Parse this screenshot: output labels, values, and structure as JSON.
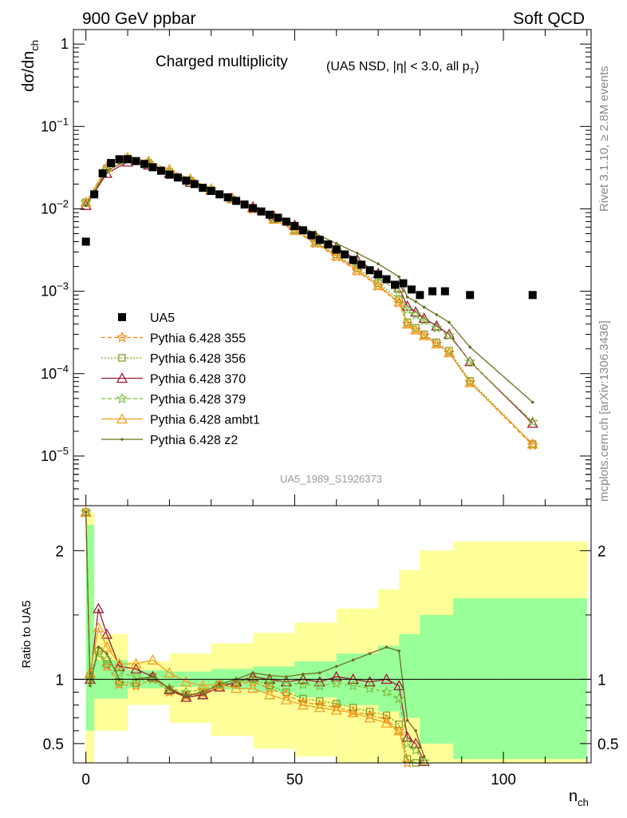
{
  "header": {
    "left": "900 GeV ppbar",
    "right": "Soft QCD"
  },
  "main_panel": {
    "title_main": "Charged multiplicity",
    "title_sub": "(UA5 NSD, |η| < 3.0, all p",
    "title_sub_subscript": "T",
    "title_sub_close": ")",
    "ylabel": "dσ/dn",
    "ylabel_subscript": "ch",
    "analysis_id": "UA5_1989_S1926373"
  },
  "ratio_panel": {
    "ylabel": "Ratio to UA5",
    "xlabel": "n",
    "xlabel_subscript": "ch"
  },
  "side_labels": {
    "rivet": "Rivet 3.1.10, ≥ 2.8M events",
    "mcplots": "mcplots.cern.ch [arXiv:1306.3436]"
  },
  "legend": [
    {
      "label": "UA5",
      "color": "#000000",
      "marker": "square",
      "dash": ""
    },
    {
      "label": "Pythia 6.428 355",
      "color": "#ff7f0e",
      "marker": "star",
      "dash": "5,3"
    },
    {
      "label": "Pythia 6.428 356",
      "color": "#7f9f1f",
      "marker": "square-open",
      "dash": "2,2"
    },
    {
      "label": "Pythia 6.428 370",
      "color": "#9b1b30",
      "marker": "triangle-open",
      "dash": ""
    },
    {
      "label": "Pythia 6.428 379",
      "color": "#7fbf3f",
      "marker": "star",
      "dash": "5,3"
    },
    {
      "label": "Pythia 6.428 ambt1",
      "color": "#f0a020",
      "marker": "triangle-open",
      "dash": ""
    },
    {
      "label": "Pythia 6.428 z2",
      "color": "#6b7020",
      "marker": "dot",
      "dash": ""
    }
  ],
  "colors": {
    "band_inner": "#99ff99",
    "band_outer": "#ffff99",
    "reference_line": "#000000"
  },
  "chart_data": [
    {
      "type": "scatter",
      "title": "Charged multiplicity",
      "xlabel": "n_ch",
      "ylabel": "dσ/dn_ch",
      "log_y": true,
      "xlim": [
        -3,
        121
      ],
      "ylim": [
        2.5e-06,
        1.5
      ],
      "x_ticks": [
        0,
        50,
        100
      ],
      "y_ticks": [
        {
          "value": 1,
          "label": "1"
        },
        {
          "value": 0.1,
          "label": "10^-1"
        },
        {
          "value": 0.01,
          "label": "10^-2"
        },
        {
          "value": 0.001,
          "label": "10^-3"
        },
        {
          "value": 0.0001,
          "label": "10^-4"
        },
        {
          "value": 1e-05,
          "label": "10^-5"
        }
      ],
      "reference": {
        "name": "UA5",
        "x": [
          0,
          2,
          4,
          6,
          8,
          10,
          12,
          14,
          16,
          18,
          20,
          22,
          24,
          26,
          28,
          30,
          32,
          34,
          36,
          38,
          40,
          42,
          44,
          46,
          48,
          50,
          52,
          54,
          56,
          58,
          60,
          62,
          64,
          66,
          68,
          70,
          72,
          74,
          76,
          78,
          80,
          83,
          86,
          92,
          107
        ],
        "y": [
          0.004,
          0.015,
          0.027,
          0.036,
          0.04,
          0.04,
          0.038,
          0.035,
          0.032,
          0.029,
          0.026,
          0.024,
          0.022,
          0.02,
          0.018,
          0.0165,
          0.015,
          0.0138,
          0.0125,
          0.0113,
          0.0102,
          0.0093,
          0.0085,
          0.0078,
          0.007,
          0.0062,
          0.0055,
          0.0048,
          0.0042,
          0.0037,
          0.0032,
          0.0028,
          0.0024,
          0.0021,
          0.0018,
          0.0016,
          0.0014,
          0.0012,
          0.00125,
          0.00105,
          0.0009,
          0.001,
          0.001,
          0.0009,
          0.0009
        ]
      },
      "series": [
        {
          "name": "Pythia 6.428 355",
          "x": [
            0,
            5,
            10,
            15,
            20,
            25,
            30,
            35,
            40,
            45,
            50,
            55,
            60,
            65,
            70,
            75,
            77,
            79,
            81,
            84,
            87,
            92,
            107
          ],
          "y": [
            0.012,
            0.03,
            0.041,
            0.036,
            0.028,
            0.022,
            0.017,
            0.013,
            0.0099,
            0.0074,
            0.0054,
            0.0038,
            0.0026,
            0.00175,
            0.00115,
            0.00072,
            0.0004,
            0.00034,
            0.00029,
            0.00023,
            0.00018,
            7.8e-05,
            1.35e-05
          ]
        },
        {
          "name": "Pythia 6.428 356",
          "x": [
            0,
            5,
            10,
            15,
            20,
            25,
            30,
            35,
            40,
            45,
            50,
            55,
            60,
            65,
            70,
            75,
            77,
            79,
            81,
            84,
            87,
            92,
            107
          ],
          "y": [
            0.012,
            0.031,
            0.041,
            0.036,
            0.028,
            0.022,
            0.017,
            0.013,
            0.01,
            0.0075,
            0.0056,
            0.004,
            0.0028,
            0.0019,
            0.00125,
            0.0008,
            0.00042,
            0.00036,
            0.0003,
            0.00024,
            0.00019,
            8.2e-05,
            1.4e-05
          ]
        },
        {
          "name": "Pythia 6.428 370",
          "x": [
            0,
            5,
            10,
            15,
            20,
            25,
            30,
            35,
            40,
            45,
            50,
            55,
            60,
            65,
            70,
            75,
            77,
            79,
            81,
            84,
            87,
            92,
            107
          ],
          "y": [
            0.011,
            0.027,
            0.037,
            0.034,
            0.027,
            0.021,
            0.017,
            0.0135,
            0.0106,
            0.0082,
            0.0063,
            0.0047,
            0.0034,
            0.0024,
            0.00165,
            0.0011,
            0.00066,
            0.00056,
            0.00047,
            0.00038,
            0.0003,
            0.00014,
            2.5e-05
          ]
        },
        {
          "name": "Pythia 6.428 379",
          "x": [
            0,
            5,
            10,
            15,
            20,
            25,
            30,
            35,
            40,
            45,
            50,
            55,
            60,
            65,
            70,
            75,
            77,
            79,
            81,
            84,
            87,
            92,
            107
          ],
          "y": [
            0.012,
            0.03,
            0.04,
            0.036,
            0.028,
            0.0215,
            0.0168,
            0.0131,
            0.0101,
            0.0078,
            0.0059,
            0.0044,
            0.0032,
            0.0022,
            0.0015,
            0.00095,
            0.0006,
            0.00052,
            0.00044,
            0.00036,
            0.00029,
            0.00014,
            2.6e-05
          ]
        },
        {
          "name": "Pythia 6.428 ambt1",
          "x": [
            0,
            5,
            10,
            15,
            20,
            25,
            30,
            35,
            40,
            45,
            50,
            55,
            60,
            65,
            70,
            75,
            77,
            79,
            81,
            84,
            87,
            92,
            107
          ],
          "y": [
            0.012,
            0.032,
            0.042,
            0.038,
            0.03,
            0.023,
            0.0175,
            0.0133,
            0.0101,
            0.0075,
            0.0055,
            0.0039,
            0.0027,
            0.0018,
            0.00118,
            0.00074,
            0.0004,
            0.00034,
            0.00029,
            0.00023,
            0.00018,
            7.8e-05,
            1.4e-05
          ]
        },
        {
          "name": "Pythia 6.428 z2",
          "x": [
            0,
            5,
            10,
            15,
            20,
            25,
            30,
            35,
            40,
            45,
            50,
            55,
            60,
            65,
            70,
            75,
            77,
            79,
            81,
            84,
            87,
            92,
            107
          ],
          "y": [
            0.011,
            0.029,
            0.039,
            0.035,
            0.028,
            0.022,
            0.0172,
            0.0136,
            0.0107,
            0.0084,
            0.0066,
            0.005,
            0.0038,
            0.0029,
            0.00215,
            0.0015,
            0.00085,
            0.00075,
            0.00064,
            0.00052,
            0.00042,
            0.00021,
            4.5e-05
          ]
        }
      ]
    },
    {
      "type": "scatter",
      "ylabel": "Ratio to UA5",
      "xlabel": "n_ch",
      "xlim": [
        -3,
        121
      ],
      "ylim": [
        0.35,
        2.35
      ],
      "x_ticks": [
        0,
        50,
        100
      ],
      "y_ticks": [
        0.5,
        1,
        2
      ],
      "reference_line": 1,
      "band_inner": {
        "x": [
          0,
          2,
          10,
          20,
          30,
          40,
          50,
          60,
          70,
          75,
          80,
          88,
          100,
          120
        ],
        "lo": [
          0.6,
          0.85,
          0.93,
          0.94,
          0.92,
          0.9,
          0.86,
          0.8,
          0.75,
          0.7,
          0.5,
          0.38,
          0.38,
          0.38
        ],
        "hi": [
          2.2,
          1.15,
          1.07,
          1.06,
          1.08,
          1.1,
          1.14,
          1.2,
          1.26,
          1.35,
          1.5,
          1.63,
          1.63,
          1.63
        ]
      },
      "band_outer": {
        "x": [
          0,
          2,
          10,
          20,
          30,
          40,
          50,
          60,
          70,
          75,
          80,
          88,
          100,
          120
        ],
        "lo": [
          0.35,
          0.6,
          0.8,
          0.66,
          0.56,
          0.46,
          0.4,
          0.35,
          0.35,
          0.35,
          0.35,
          0.35,
          0.35,
          0.35
        ],
        "hi": [
          2.3,
          1.35,
          1.14,
          1.2,
          1.28,
          1.36,
          1.44,
          1.55,
          1.7,
          1.85,
          2.0,
          2.07,
          2.07,
          2.07
        ]
      },
      "series": [
        {
          "name": "Pythia 6.428 355",
          "x": [
            0,
            1,
            3,
            5,
            8,
            12,
            16,
            20,
            24,
            28,
            32,
            36,
            40,
            44,
            48,
            52,
            56,
            60,
            64,
            68,
            72,
            75,
            77,
            79,
            81
          ],
          "y": [
            2.3,
            1.0,
            1.2,
            1.1,
            0.96,
            0.95,
            1.0,
            0.9,
            0.87,
            0.89,
            0.95,
            0.96,
            0.98,
            0.93,
            0.88,
            0.82,
            0.8,
            0.78,
            0.75,
            0.72,
            0.69,
            0.6,
            0.35,
            0.33,
            0.33
          ]
        },
        {
          "name": "Pythia 6.428 356",
          "x": [
            0,
            1,
            3,
            5,
            8,
            12,
            16,
            20,
            24,
            28,
            32,
            36,
            40,
            44,
            48,
            52,
            56,
            60,
            64,
            68,
            72,
            75,
            77,
            79,
            81
          ],
          "y": [
            2.3,
            1.02,
            1.22,
            1.12,
            0.98,
            0.97,
            1.02,
            0.92,
            0.88,
            0.9,
            0.96,
            0.97,
            1.0,
            0.95,
            0.9,
            0.85,
            0.83,
            0.81,
            0.78,
            0.75,
            0.72,
            0.65,
            0.38,
            0.35,
            0.34
          ]
        },
        {
          "name": "Pythia 6.428 370",
          "x": [
            0,
            1,
            3,
            5,
            8,
            12,
            16,
            20,
            24,
            28,
            32,
            36,
            40,
            44,
            48,
            52,
            56,
            60,
            64,
            68,
            72,
            75,
            77,
            79,
            81
          ],
          "y": [
            2.3,
            1.0,
            1.55,
            1.35,
            1.1,
            1.08,
            1.02,
            0.92,
            0.86,
            0.88,
            0.94,
            0.98,
            1.02,
            1.0,
            0.98,
            1.0,
            0.98,
            1.02,
            1.0,
            0.98,
            1.0,
            0.95,
            0.55,
            0.5,
            0.36
          ]
        },
        {
          "name": "Pythia 6.428 379",
          "x": [
            0,
            1,
            3,
            5,
            8,
            12,
            16,
            20,
            24,
            28,
            32,
            36,
            40,
            44,
            48,
            52,
            56,
            60,
            64,
            68,
            72,
            75,
            77,
            79,
            81
          ],
          "y": [
            2.3,
            1.0,
            1.2,
            1.15,
            1.05,
            1.02,
            1.0,
            0.93,
            0.9,
            0.92,
            0.96,
            0.98,
            1.0,
            0.99,
            0.97,
            0.96,
            0.95,
            0.97,
            0.95,
            0.93,
            0.9,
            0.85,
            0.5,
            0.45,
            0.36
          ]
        },
        {
          "name": "Pythia 6.428 ambt1",
          "x": [
            0,
            1,
            3,
            5,
            8,
            12,
            16,
            20,
            24,
            28,
            32,
            36,
            40,
            44,
            48,
            52,
            56,
            60,
            64,
            68,
            72,
            75,
            77,
            79,
            81
          ],
          "y": [
            2.3,
            1.05,
            1.4,
            1.25,
            1.12,
            1.12,
            1.15,
            1.05,
            0.98,
            0.95,
            0.96,
            0.93,
            0.93,
            0.88,
            0.84,
            0.8,
            0.78,
            0.76,
            0.74,
            0.7,
            0.66,
            0.6,
            0.34,
            0.33,
            0.33
          ]
        },
        {
          "name": "Pythia 6.428 z2",
          "x": [
            0,
            1,
            3,
            5,
            8,
            12,
            16,
            20,
            24,
            28,
            32,
            36,
            40,
            44,
            48,
            52,
            56,
            60,
            64,
            68,
            72,
            75,
            77,
            79,
            81
          ],
          "y": [
            2.3,
            0.95,
            1.25,
            1.2,
            1.0,
            1.0,
            1.02,
            0.93,
            0.87,
            0.9,
            0.96,
            1.0,
            1.05,
            1.03,
            1.02,
            1.04,
            1.05,
            1.1,
            1.15,
            1.2,
            1.25,
            1.22,
            0.68,
            0.6,
            0.4
          ]
        }
      ]
    }
  ]
}
